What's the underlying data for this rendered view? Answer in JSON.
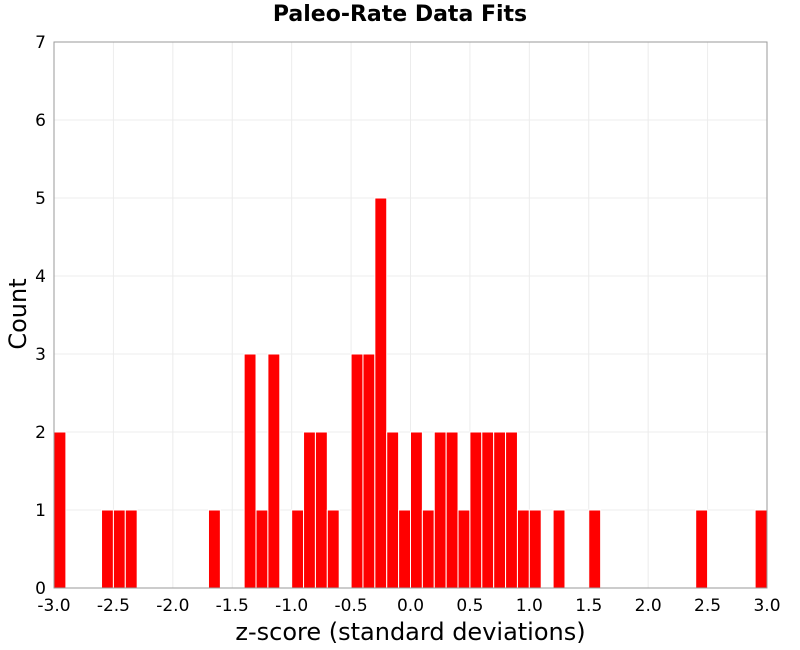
{
  "chart_data": {
    "type": "bar",
    "title": "Paleo-Rate Data Fits",
    "xlabel": "z-score (standard deviations)",
    "ylabel": "Count",
    "xlim": [
      -3.0,
      3.0
    ],
    "ylim": [
      0,
      7
    ],
    "bin_width": 0.1,
    "grid": true,
    "bar_color": "#ff0000",
    "x_ticks": [
      "-3.0",
      "-2.5",
      "-2.0",
      "-1.5",
      "-1.0",
      "-0.5",
      "0.0",
      "0.5",
      "1.0",
      "1.5",
      "2.0",
      "2.5",
      "3.0"
    ],
    "y_ticks": [
      "0",
      "1",
      "2",
      "3",
      "4",
      "5",
      "6",
      "7"
    ],
    "bins": [
      {
        "x": -2.95,
        "count": 2
      },
      {
        "x": -2.55,
        "count": 1
      },
      {
        "x": -2.45,
        "count": 1
      },
      {
        "x": -2.35,
        "count": 1
      },
      {
        "x": -1.65,
        "count": 1
      },
      {
        "x": -1.35,
        "count": 3
      },
      {
        "x": -1.25,
        "count": 1
      },
      {
        "x": -1.15,
        "count": 3
      },
      {
        "x": -0.95,
        "count": 1
      },
      {
        "x": -0.85,
        "count": 2
      },
      {
        "x": -0.75,
        "count": 2
      },
      {
        "x": -0.65,
        "count": 1
      },
      {
        "x": -0.45,
        "count": 3
      },
      {
        "x": -0.35,
        "count": 3
      },
      {
        "x": -0.25,
        "count": 5
      },
      {
        "x": -0.15,
        "count": 2
      },
      {
        "x": -0.05,
        "count": 1
      },
      {
        "x": 0.05,
        "count": 2
      },
      {
        "x": 0.15,
        "count": 1
      },
      {
        "x": 0.25,
        "count": 2
      },
      {
        "x": 0.35,
        "count": 2
      },
      {
        "x": 0.45,
        "count": 1
      },
      {
        "x": 0.55,
        "count": 2
      },
      {
        "x": 0.65,
        "count": 2
      },
      {
        "x": 0.75,
        "count": 2
      },
      {
        "x": 0.85,
        "count": 2
      },
      {
        "x": 0.95,
        "count": 1
      },
      {
        "x": 1.05,
        "count": 1
      },
      {
        "x": 1.25,
        "count": 1
      },
      {
        "x": 1.55,
        "count": 1
      },
      {
        "x": 2.45,
        "count": 1
      },
      {
        "x": 2.95,
        "count": 1
      }
    ]
  }
}
